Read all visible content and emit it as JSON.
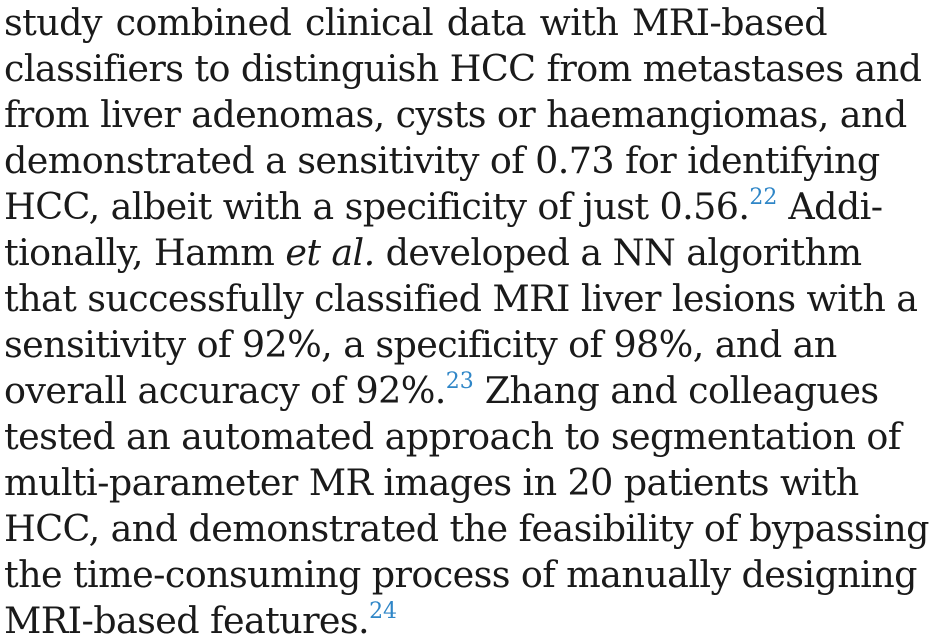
{
  "paragraph": {
    "lines": [
      "study combined clinical data with MRI-based",
      "classifiers to distinguish HCC from metastases and",
      "from liver adenomas, cysts or haemangiomas, and",
      "demonstrated a sensitivity of 0.73 for identifying",
      {
        "before": "HCC, albeit with a specificity of just 0.56.",
        "ref": "22",
        "after": " Addi-"
      },
      {
        "before": "tionally, Hamm ",
        "italic": "et al.",
        "after": " developed a NN algorithm"
      },
      "that successfully classified MRI liver lesions with a",
      "sensitivity of 92%, a specificity of 98%, and an",
      {
        "before": "overall accuracy of 92%.",
        "ref": "23",
        "after": " Zhang and colleagues"
      },
      "tested an automated approach to segmentation of",
      "multi-parameter MR images in 20 patients with",
      "HCC, and demonstrated the feasibility of bypassing",
      "the time-consuming process of manually designing",
      {
        "before": "MRI-based features.",
        "ref": "24",
        "after": ""
      }
    ]
  }
}
